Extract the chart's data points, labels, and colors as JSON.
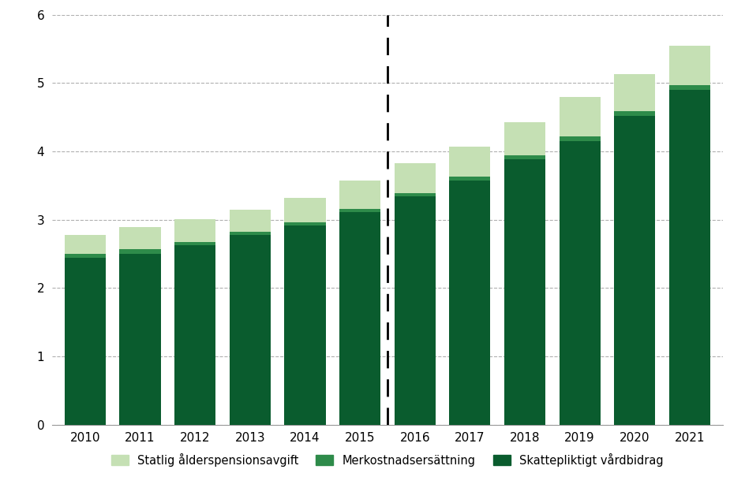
{
  "years": [
    2010,
    2011,
    2012,
    2013,
    2014,
    2015,
    2016,
    2017,
    2018,
    2019,
    2020,
    2021
  ],
  "skattepliktigt": [
    2.44,
    2.5,
    2.62,
    2.77,
    2.91,
    3.11,
    3.34,
    3.57,
    3.88,
    4.15,
    4.52,
    4.9
  ],
  "merkostnad": [
    0.06,
    0.07,
    0.05,
    0.05,
    0.05,
    0.05,
    0.05,
    0.06,
    0.06,
    0.07,
    0.07,
    0.07
  ],
  "statlig": [
    0.28,
    0.32,
    0.34,
    0.33,
    0.36,
    0.41,
    0.44,
    0.44,
    0.49,
    0.58,
    0.54,
    0.57
  ],
  "color_skattepliktigt": "#0a5c2e",
  "color_merkostnad": "#2e8b4a",
  "color_statlig": "#c5e0b4",
  "dashed_line_x": 5.5,
  "ylim": [
    0,
    6
  ],
  "yticks": [
    0,
    1,
    2,
    3,
    4,
    5,
    6
  ],
  "legend_labels": [
    "Statlig ålderspensionsavgift",
    "Merkostnadsersättning",
    "Skattepliktigt vårdbidrag"
  ],
  "bar_width": 0.75
}
